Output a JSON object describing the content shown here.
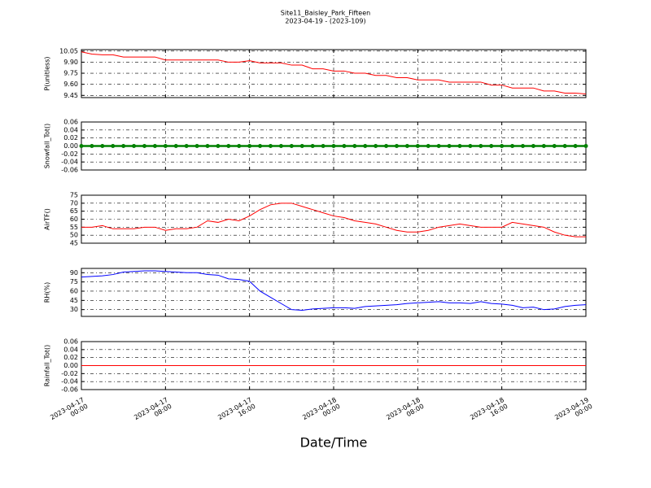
{
  "title": "Site11_Baisley_Park_Fifteen",
  "subtitle": "2023-04-19 - (2023-109)",
  "x_label": "Date/Time",
  "chart_data": [
    {
      "type": "line",
      "ylabel": "P(unitless)",
      "x": [
        "2023-04-17 00:00",
        "2023-04-17 01:00",
        "2023-04-17 02:00",
        "2023-04-17 03:00",
        "2023-04-17 04:00",
        "2023-04-17 05:00",
        "2023-04-17 06:00",
        "2023-04-17 07:00",
        "2023-04-17 08:00",
        "2023-04-17 09:00",
        "2023-04-17 10:00",
        "2023-04-17 11:00",
        "2023-04-17 12:00",
        "2023-04-17 13:00",
        "2023-04-17 14:00",
        "2023-04-17 15:00",
        "2023-04-17 16:00",
        "2023-04-17 17:00",
        "2023-04-17 18:00",
        "2023-04-17 19:00",
        "2023-04-17 20:00",
        "2023-04-17 21:00",
        "2023-04-17 22:00",
        "2023-04-17 23:00",
        "2023-04-18 00:00",
        "2023-04-18 01:00",
        "2023-04-18 02:00",
        "2023-04-18 03:00",
        "2023-04-18 04:00",
        "2023-04-18 05:00",
        "2023-04-18 06:00",
        "2023-04-18 07:00",
        "2023-04-18 08:00",
        "2023-04-18 09:00",
        "2023-04-18 10:00",
        "2023-04-18 11:00",
        "2023-04-18 12:00",
        "2023-04-18 13:00",
        "2023-04-18 14:00",
        "2023-04-18 15:00",
        "2023-04-18 16:00",
        "2023-04-18 17:00",
        "2023-04-18 18:00",
        "2023-04-18 19:00",
        "2023-04-18 20:00",
        "2023-04-18 21:00",
        "2023-04-18 22:00",
        "2023-04-18 23:00",
        "2023-04-19 00:00"
      ],
      "series": [
        {
          "name": "P",
          "color": "#ff0000",
          "values": [
            10.04,
            10.01,
            10.0,
            10.0,
            9.97,
            9.97,
            9.97,
            9.97,
            9.93,
            9.93,
            9.93,
            9.93,
            9.93,
            9.93,
            9.9,
            9.9,
            9.92,
            9.89,
            9.89,
            9.89,
            9.86,
            9.86,
            9.81,
            9.81,
            9.78,
            9.78,
            9.75,
            9.75,
            9.72,
            9.72,
            9.69,
            9.69,
            9.66,
            9.66,
            9.66,
            9.63,
            9.63,
            9.63,
            9.63,
            9.59,
            9.59,
            9.55,
            9.55,
            9.55,
            9.51,
            9.51,
            9.48,
            9.48,
            9.47
          ]
        }
      ],
      "xlim": [
        "2023-04-17 00:00",
        "2023-04-19 00:00"
      ],
      "xticks": [
        "2023-04-17 00:00",
        "2023-04-17 08:00",
        "2023-04-17 16:00",
        "2023-04-18 00:00",
        "2023-04-18 08:00",
        "2023-04-18 16:00",
        "2023-04-19 00:00"
      ],
      "ylim": [
        9.42,
        10.07
      ],
      "yticks": [
        10.05,
        {
          "value": 9.9,
          "label": "9.90"
        },
        9.75,
        {
          "value": 9.6,
          "label": "9.60"
        },
        9.45
      ],
      "grid": true
    },
    {
      "type": "line",
      "ylabel": "Snowfall_Tot()",
      "markers": true,
      "x": [
        "2023-04-17 00:00",
        "2023-04-17 01:00",
        "2023-04-17 02:00",
        "2023-04-17 03:00",
        "2023-04-17 04:00",
        "2023-04-17 05:00",
        "2023-04-17 06:00",
        "2023-04-17 07:00",
        "2023-04-17 08:00",
        "2023-04-17 09:00",
        "2023-04-17 10:00",
        "2023-04-17 11:00",
        "2023-04-17 12:00",
        "2023-04-17 13:00",
        "2023-04-17 14:00",
        "2023-04-17 15:00",
        "2023-04-17 16:00",
        "2023-04-17 17:00",
        "2023-04-17 18:00",
        "2023-04-17 19:00",
        "2023-04-17 20:00",
        "2023-04-17 21:00",
        "2023-04-17 22:00",
        "2023-04-17 23:00",
        "2023-04-18 00:00",
        "2023-04-18 01:00",
        "2023-04-18 02:00",
        "2023-04-18 03:00",
        "2023-04-18 04:00",
        "2023-04-18 05:00",
        "2023-04-18 06:00",
        "2023-04-18 07:00",
        "2023-04-18 08:00",
        "2023-04-18 09:00",
        "2023-04-18 10:00",
        "2023-04-18 11:00",
        "2023-04-18 12:00",
        "2023-04-18 13:00",
        "2023-04-18 14:00",
        "2023-04-18 15:00",
        "2023-04-18 16:00",
        "2023-04-18 17:00",
        "2023-04-18 18:00",
        "2023-04-18 19:00",
        "2023-04-18 20:00",
        "2023-04-18 21:00",
        "2023-04-18 22:00",
        "2023-04-18 23:00",
        "2023-04-19 00:00"
      ],
      "series": [
        {
          "name": "Snowfall_Tot",
          "color": "#008000",
          "values": [
            0,
            0,
            0,
            0,
            0,
            0,
            0,
            0,
            0,
            0,
            0,
            0,
            0,
            0,
            0,
            0,
            0,
            0,
            0,
            0,
            0,
            0,
            0,
            0,
            0,
            0,
            0,
            0,
            0,
            0,
            0,
            0,
            0,
            0,
            0,
            0,
            0,
            0,
            0,
            0,
            0,
            0,
            0,
            0,
            0,
            0,
            0,
            0,
            0
          ]
        }
      ],
      "xlim": [
        "2023-04-17 00:00",
        "2023-04-19 00:00"
      ],
      "xticks": [
        "2023-04-17 00:00",
        "2023-04-17 08:00",
        "2023-04-17 16:00",
        "2023-04-18 00:00",
        "2023-04-18 08:00",
        "2023-04-18 16:00",
        "2023-04-19 00:00"
      ],
      "ylim": [
        -0.06,
        0.06
      ],
      "yticks": [
        0.06,
        0.04,
        0.02,
        {
          "value": 0,
          "label": "0.00"
        },
        -0.02,
        -0.04,
        -0.06
      ],
      "grid": true
    },
    {
      "type": "line",
      "ylabel": "AirTF()",
      "x": [
        "2023-04-17 00:00",
        "2023-04-17 01:00",
        "2023-04-17 02:00",
        "2023-04-17 03:00",
        "2023-04-17 04:00",
        "2023-04-17 05:00",
        "2023-04-17 06:00",
        "2023-04-17 07:00",
        "2023-04-17 08:00",
        "2023-04-17 09:00",
        "2023-04-17 10:00",
        "2023-04-17 11:00",
        "2023-04-17 12:00",
        "2023-04-17 13:00",
        "2023-04-17 14:00",
        "2023-04-17 15:00",
        "2023-04-17 16:00",
        "2023-04-17 17:00",
        "2023-04-17 18:00",
        "2023-04-17 19:00",
        "2023-04-17 20:00",
        "2023-04-17 21:00",
        "2023-04-17 22:00",
        "2023-04-17 23:00",
        "2023-04-18 00:00",
        "2023-04-18 01:00",
        "2023-04-18 02:00",
        "2023-04-18 03:00",
        "2023-04-18 04:00",
        "2023-04-18 05:00",
        "2023-04-18 06:00",
        "2023-04-18 07:00",
        "2023-04-18 08:00",
        "2023-04-18 09:00",
        "2023-04-18 10:00",
        "2023-04-18 11:00",
        "2023-04-18 12:00",
        "2023-04-18 13:00",
        "2023-04-18 14:00",
        "2023-04-18 15:00",
        "2023-04-18 16:00",
        "2023-04-18 17:00",
        "2023-04-18 18:00",
        "2023-04-18 19:00",
        "2023-04-18 20:00",
        "2023-04-18 21:00",
        "2023-04-18 22:00",
        "2023-04-18 23:00",
        "2023-04-19 00:00"
      ],
      "series": [
        {
          "name": "AirTF",
          "color": "#ff0000",
          "values": [
            55,
            55,
            56,
            54,
            54,
            54,
            55,
            55,
            53,
            54,
            54,
            55,
            59,
            58,
            60,
            59,
            62,
            66,
            69,
            70,
            70,
            68,
            66,
            64,
            62,
            61,
            59,
            58,
            57,
            55,
            53,
            52,
            52,
            53,
            55,
            56,
            57,
            56,
            55,
            55,
            55,
            58,
            57,
            56,
            55,
            52,
            50,
            49,
            49
          ]
        }
      ],
      "xlim": [
        "2023-04-17 00:00",
        "2023-04-19 00:00"
      ],
      "xticks": [
        "2023-04-17 00:00",
        "2023-04-17 08:00",
        "2023-04-17 16:00",
        "2023-04-18 00:00",
        "2023-04-18 08:00",
        "2023-04-18 16:00",
        "2023-04-19 00:00"
      ],
      "ylim": [
        45,
        75
      ],
      "yticks": [
        75,
        70,
        65,
        60,
        55,
        50,
        45
      ],
      "grid": true
    },
    {
      "type": "line",
      "ylabel": "RH(%)",
      "x": [
        "2023-04-17 00:00",
        "2023-04-17 01:00",
        "2023-04-17 02:00",
        "2023-04-17 03:00",
        "2023-04-17 04:00",
        "2023-04-17 05:00",
        "2023-04-17 06:00",
        "2023-04-17 07:00",
        "2023-04-17 08:00",
        "2023-04-17 09:00",
        "2023-04-17 10:00",
        "2023-04-17 11:00",
        "2023-04-17 12:00",
        "2023-04-17 13:00",
        "2023-04-17 14:00",
        "2023-04-17 15:00",
        "2023-04-17 16:00",
        "2023-04-17 17:00",
        "2023-04-17 18:00",
        "2023-04-17 19:00",
        "2023-04-17 20:00",
        "2023-04-17 21:00",
        "2023-04-17 22:00",
        "2023-04-17 23:00",
        "2023-04-18 00:00",
        "2023-04-18 01:00",
        "2023-04-18 02:00",
        "2023-04-18 03:00",
        "2023-04-18 04:00",
        "2023-04-18 05:00",
        "2023-04-18 06:00",
        "2023-04-18 07:00",
        "2023-04-18 08:00",
        "2023-04-18 09:00",
        "2023-04-18 10:00",
        "2023-04-18 11:00",
        "2023-04-18 12:00",
        "2023-04-18 13:00",
        "2023-04-18 14:00",
        "2023-04-18 15:00",
        "2023-04-18 16:00",
        "2023-04-18 17:00",
        "2023-04-18 18:00",
        "2023-04-18 19:00",
        "2023-04-18 20:00",
        "2023-04-18 21:00",
        "2023-04-18 22:00",
        "2023-04-18 23:00",
        "2023-04-19 00:00"
      ],
      "series": [
        {
          "name": "RH",
          "color": "#0000ff",
          "values": [
            83,
            84,
            85,
            87,
            91,
            92,
            93,
            93,
            92,
            91,
            90,
            90,
            87,
            86,
            80,
            79,
            76,
            60,
            50,
            40,
            30,
            29,
            31,
            32,
            33,
            33,
            32,
            35,
            36,
            37,
            38,
            40,
            41,
            42,
            43,
            41,
            41,
            40,
            43,
            40,
            39,
            37,
            33,
            34,
            30,
            31,
            35,
            37,
            38
          ]
        }
      ],
      "xlim": [
        "2023-04-17 00:00",
        "2023-04-19 00:00"
      ],
      "xticks": [
        "2023-04-17 00:00",
        "2023-04-17 08:00",
        "2023-04-17 16:00",
        "2023-04-18 00:00",
        "2023-04-18 08:00",
        "2023-04-18 16:00",
        "2023-04-19 00:00"
      ],
      "ylim": [
        19,
        97
      ],
      "yticks": [
        90,
        75,
        60,
        45,
        30
      ],
      "grid": true
    },
    {
      "type": "line",
      "ylabel": "Rainfall_Tot()",
      "x": [
        "2023-04-17 00:00",
        "2023-04-17 01:00",
        "2023-04-17 02:00",
        "2023-04-17 03:00",
        "2023-04-17 04:00",
        "2023-04-17 05:00",
        "2023-04-17 06:00",
        "2023-04-17 07:00",
        "2023-04-17 08:00",
        "2023-04-17 09:00",
        "2023-04-17 10:00",
        "2023-04-17 11:00",
        "2023-04-17 12:00",
        "2023-04-17 13:00",
        "2023-04-17 14:00",
        "2023-04-17 15:00",
        "2023-04-17 16:00",
        "2023-04-17 17:00",
        "2023-04-17 18:00",
        "2023-04-17 19:00",
        "2023-04-17 20:00",
        "2023-04-17 21:00",
        "2023-04-17 22:00",
        "2023-04-17 23:00",
        "2023-04-18 00:00",
        "2023-04-18 01:00",
        "2023-04-18 02:00",
        "2023-04-18 03:00",
        "2023-04-18 04:00",
        "2023-04-18 05:00",
        "2023-04-18 06:00",
        "2023-04-18 07:00",
        "2023-04-18 08:00",
        "2023-04-18 09:00",
        "2023-04-18 10:00",
        "2023-04-18 11:00",
        "2023-04-18 12:00",
        "2023-04-18 13:00",
        "2023-04-18 14:00",
        "2023-04-18 15:00",
        "2023-04-18 16:00",
        "2023-04-18 17:00",
        "2023-04-18 18:00",
        "2023-04-18 19:00",
        "2023-04-18 20:00",
        "2023-04-18 21:00",
        "2023-04-18 22:00",
        "2023-04-18 23:00",
        "2023-04-19 00:00"
      ],
      "series": [
        {
          "name": "Rainfall_Tot",
          "color": "#ff0000",
          "values": [
            0,
            0,
            0,
            0,
            0,
            0,
            0,
            0,
            0,
            0,
            0,
            0,
            0,
            0,
            0,
            0,
            0,
            0,
            0,
            0,
            0,
            0,
            0,
            0,
            0,
            0,
            0,
            0,
            0,
            0,
            0,
            0,
            0,
            0,
            0,
            0,
            0,
            0,
            0,
            0,
            0,
            0,
            0,
            0,
            0,
            0,
            0,
            0,
            0
          ]
        }
      ],
      "xlim": [
        "2023-04-17 00:00",
        "2023-04-19 00:00"
      ],
      "xticks": [
        {
          "value": "2023-04-17 00:00",
          "label": "2023-04-17\n00:00"
        },
        {
          "value": "2023-04-17 08:00",
          "label": "2023-04-17\n08:00"
        },
        {
          "value": "2023-04-17 16:00",
          "label": "2023-04-17\n16:00"
        },
        {
          "value": "2023-04-18 00:00",
          "label": "2023-04-18\n00:00"
        },
        {
          "value": "2023-04-18 08:00",
          "label": "2023-04-18\n08:00"
        },
        {
          "value": "2023-04-18 16:00",
          "label": "2023-04-18\n16:00"
        },
        {
          "value": "2023-04-19 00:00",
          "label": "2023-04-19\n00:00"
        }
      ],
      "ylim": [
        -0.06,
        0.06
      ],
      "yticks": [
        0.06,
        0.04,
        0.02,
        {
          "value": 0,
          "label": "0.00"
        },
        -0.02,
        -0.04,
        -0.06
      ],
      "grid": true
    }
  ]
}
